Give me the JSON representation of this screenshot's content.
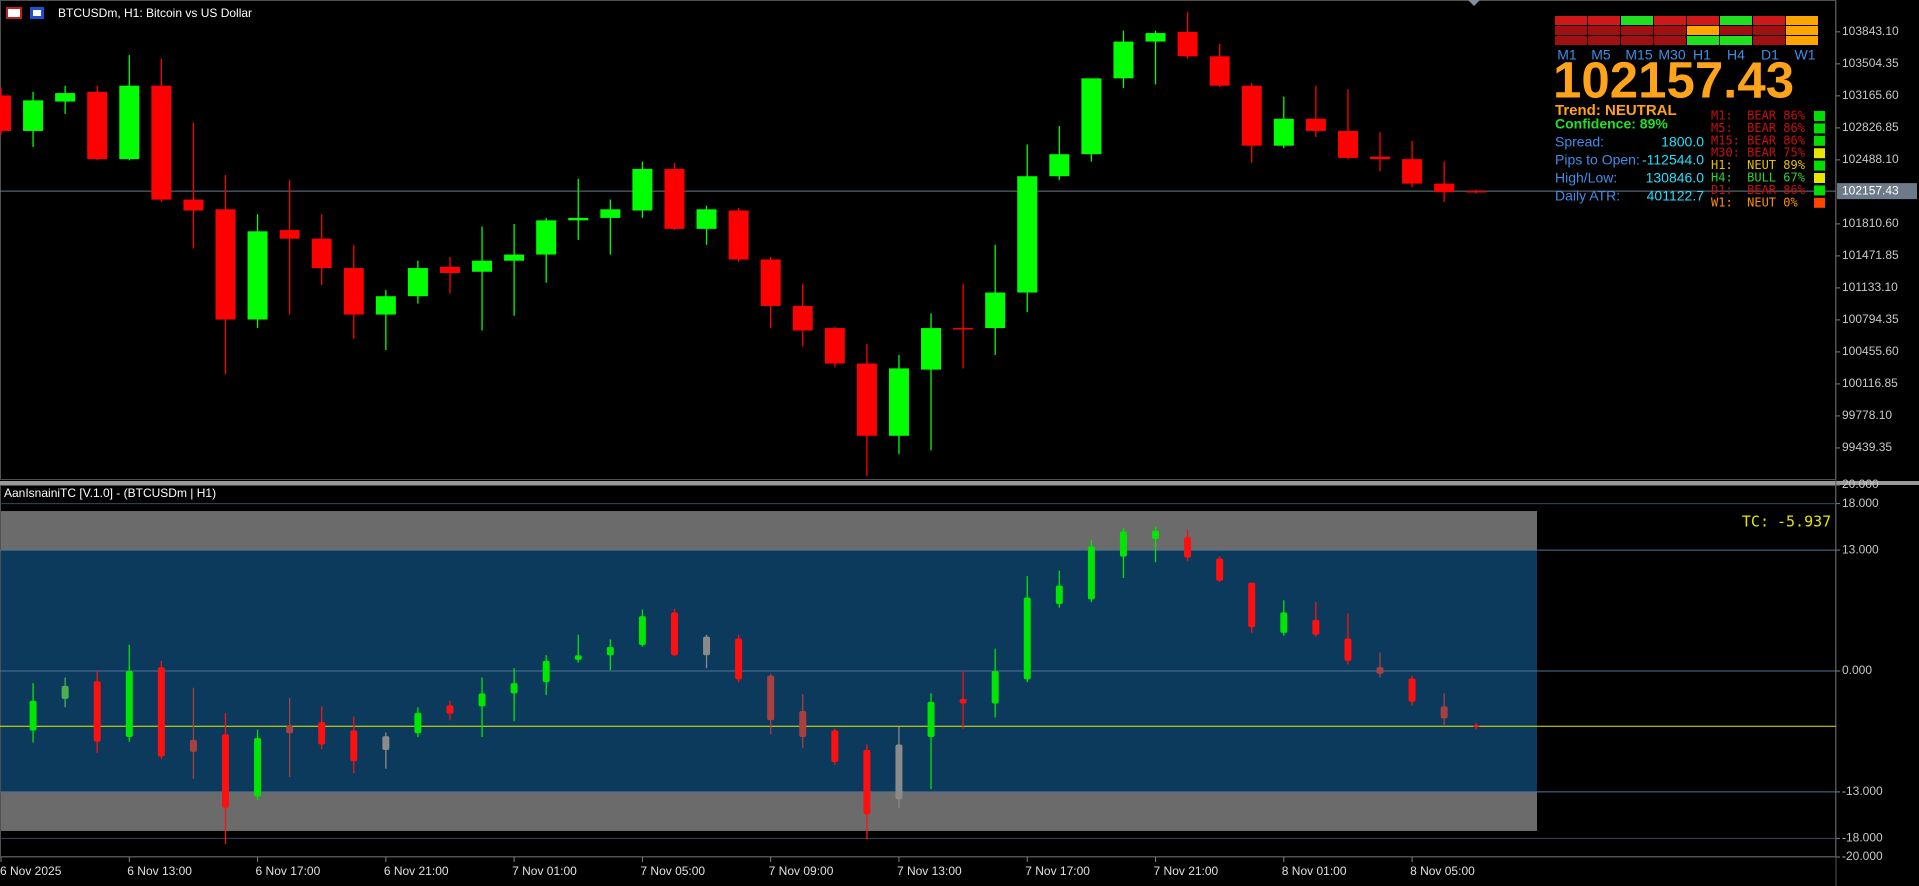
{
  "chart_data": [
    {
      "type": "candlestick",
      "title": "BTCUSDm, H1:  Bitcoin vs US Dollar",
      "categories": [
        "6 Nov 2025",
        null,
        null,
        null,
        "6 Nov 13:00",
        null,
        null,
        null,
        "6 Nov 17:00",
        null,
        null,
        null,
        "6 Nov 21:00",
        null,
        null,
        null,
        "7 Nov 01:00",
        null,
        null,
        null,
        "7 Nov 05:00",
        null,
        null,
        null,
        "7 Nov 09:00",
        null,
        null,
        null,
        "7 Nov 13:00",
        null,
        null,
        null,
        "7 Nov 17:00",
        null,
        null,
        null,
        "7 Nov 21:00",
        null,
        null,
        null,
        "8 Nov 01:00",
        null,
        null,
        null,
        "8 Nov 05:00",
        null,
        null
      ],
      "open": [
        103170,
        102794,
        103105,
        103208,
        102496,
        103273,
        102068,
        101965,
        100799,
        101745,
        101654,
        101343,
        100851,
        101045,
        101356,
        101304,
        101421,
        101486,
        101848,
        101874,
        101952,
        102392,
        101758,
        101952,
        101434,
        100942,
        100708,
        100333,
        99568,
        100268,
        100708,
        100708,
        101084,
        102315,
        102548,
        103351,
        103740,
        103843,
        103584,
        103273,
        102638,
        102923,
        102794,
        102522,
        102496,
        102237,
        102159
      ],
      "high": [
        103247,
        103208,
        103273,
        103273,
        103597,
        103558,
        102884,
        102328,
        101913,
        102276,
        101913,
        101589,
        101110,
        101421,
        101460,
        101783,
        101809,
        101874,
        102289,
        102068,
        102470,
        102457,
        102004,
        101978,
        101460,
        101175,
        100721,
        100540,
        100423,
        100864,
        101175,
        101589,
        102651,
        102846,
        103351,
        103856,
        103856,
        104050,
        103714,
        103299,
        103157,
        103273,
        103234,
        102781,
        102690,
        102470,
        102172
      ],
      "low": [
        102755,
        102625,
        102975,
        102483,
        102483,
        102043,
        101550,
        100216,
        100708,
        100851,
        101162,
        100592,
        100475,
        100967,
        101071,
        100682,
        100838,
        101188,
        101641,
        101486,
        101874,
        101745,
        101589,
        101408,
        100708,
        100514,
        100294,
        99141,
        99374,
        99413,
        100281,
        100423,
        100877,
        102276,
        102470,
        103247,
        103286,
        103558,
        103260,
        102457,
        102612,
        102729,
        102496,
        102366,
        102198,
        102043,
        102133
      ],
      "close": [
        102794,
        103118,
        103195,
        102496,
        103273,
        102068,
        101952,
        100799,
        101732,
        101654,
        101343,
        100851,
        101045,
        101343,
        101291,
        101421,
        101486,
        101848,
        101874,
        101965,
        102392,
        101758,
        101965,
        101434,
        100942,
        100682,
        100333,
        99568,
        100281,
        100708,
        100695,
        101084,
        102315,
        102548,
        103351,
        103740,
        103830,
        103584,
        103273,
        102638,
        102923,
        102794,
        102509,
        102496,
        102237,
        102146,
        102157.43
      ],
      "up_color": "#00ff00",
      "down_color": "#ff0000",
      "ylim": [
        99100,
        104180
      ],
      "yticks": [
        {
          "value": 103843.1,
          "label": "103843.10"
        },
        103504.35,
        {
          "value": 103165.6,
          "label": "103165.60"
        },
        102826.85,
        {
          "value": 102488.1,
          "label": "102488.10"
        },
        {
          "value": 101810.6,
          "label": "101810.60"
        },
        101471.85,
        {
          "value": 101133.1,
          "label": "101133.10"
        },
        100794.35,
        {
          "value": 100455.6,
          "label": "100455.60"
        },
        100116.85,
        {
          "value": 99778.1,
          "label": "99778.10"
        },
        99439.35
      ],
      "last_price": 102157.43
    },
    {
      "type": "candlestick",
      "title": "AanIsnainiTC [V.1.0]  - (BTCUSDm | H1)",
      "open": [
        null,
        -6.4,
        -3.0,
        -1.1,
        -7.1,
        0.4,
        -7.4,
        -6.8,
        -13.5,
        -5.9,
        -5.5,
        -6.4,
        -7.0,
        -6.7,
        -3.7,
        -3.8,
        -2.4,
        -1.2,
        1.2,
        1.7,
        2.8,
        6.3,
        3.7,
        3.5,
        -0.5,
        -4.3,
        -6.4,
        -8.5,
        -13.8,
        -7.1,
        -3.0,
        -3.5,
        -0.9,
        7.2,
        7.7,
        12.3,
        14.2,
        14.4,
        12.1,
        9.5,
        4.1,
        5.5,
        3.5,
        0.4,
        -0.8,
        -3.8,
        -5.8
      ],
      "high": [
        null,
        -1.3,
        -0.7,
        0,
        2.8,
        1.1,
        -1.8,
        -4.5,
        -6.3,
        -2.9,
        -3.8,
        -4.9,
        -6.6,
        -3.9,
        -3.2,
        -0.7,
        0.3,
        1.7,
        3.9,
        3.4,
        6.6,
        6.7,
        3.9,
        3.9,
        -0.3,
        -2.5,
        -6.2,
        -7.9,
        -6.0,
        -2.4,
        0,
        2.4,
        10.2,
        10.8,
        14.1,
        15.4,
        15.5,
        15.2,
        12.3,
        9.5,
        7.6,
        7.4,
        6.2,
        2.0,
        -0.5,
        -2.4,
        -5.6
      ],
      "low": [
        null,
        -7.7,
        -3.9,
        -8.8,
        -7.6,
        -9.5,
        -11.6,
        -18.6,
        -13.9,
        -11.4,
        -8.4,
        -11.0,
        -10.5,
        -7.1,
        -5.3,
        -7.1,
        -5.4,
        -2.6,
        0.9,
        0.1,
        2.6,
        1.6,
        0.3,
        -1.2,
        -6.8,
        -8.3,
        -10.1,
        -18.1,
        -14.7,
        -12.7,
        -6.2,
        -5.0,
        -1.2,
        6.8,
        7.4,
        10.0,
        11.7,
        11.8,
        9.6,
        4.1,
        3.8,
        3.7,
        0.7,
        -0.7,
        -3.7,
        -5.8,
        -6.3
      ],
      "close": [
        null,
        -3.2,
        -1.6,
        -7.6,
        0,
        -9.2,
        -8.7,
        -14.7,
        -7.2,
        -6.7,
        -7.9,
        -9.7,
        -8.5,
        -4.5,
        -4.6,
        -2.4,
        -1.3,
        1.1,
        1.7,
        2.6,
        5.9,
        1.7,
        1.7,
        -0.9,
        -5.3,
        -7.1,
        -9.8,
        -15.4,
        -7.9,
        -3.3,
        -3.5,
        0,
        7.9,
        9.2,
        13.4,
        15.0,
        15.1,
        12.2,
        9.7,
        4.7,
        6.3,
        3.9,
        1.1,
        -0.3,
        -3.3,
        -5.1,
        -5.937
      ],
      "colors": [
        null,
        "#00e600",
        "#4caf50",
        "#ff1010",
        "#00e600",
        "#ff1010",
        "#a84040",
        "#ff1010",
        "#00e600",
        "#a84040",
        "#ff1010",
        "#ff1010",
        "#8a8a8a",
        "#00e600",
        "#ff1010",
        "#00e600",
        "#00e600",
        "#00e600",
        "#00e600",
        "#00e600",
        "#00e600",
        "#ff1010",
        "#8a8a8a",
        "#ff1010",
        "#a84040",
        "#a84040",
        "#ff1010",
        "#ff1010",
        "#8a8a8a",
        "#00e600",
        "#ff1010",
        "#00e600",
        "#00e600",
        "#00e600",
        "#00e600",
        "#00e600",
        "#00e600",
        "#ff1010",
        "#ff1010",
        "#ff1010",
        "#00e600",
        "#ff1010",
        "#ff1010",
        "#a84040",
        "#ff1010",
        "#a84040",
        "#ff1010"
      ],
      "ylim": [
        -20,
        20
      ],
      "yticks": [
        {
          "value": 20,
          "label": "20.000"
        },
        {
          "value": 18,
          "label": "18.000"
        },
        {
          "value": 13,
          "label": "13.000"
        },
        {
          "value": 0,
          "label": "0.000"
        },
        {
          "value": -13,
          "label": "-13.000"
        },
        {
          "value": -18,
          "label": "-18.000"
        },
        {
          "value": -20,
          "label": "-20.000"
        }
      ],
      "zones": [
        {
          "from": 17.2,
          "to": 13,
          "color": "#6b6b6b"
        },
        {
          "from": 13,
          "to": -13,
          "color": "#0b3a5c"
        },
        {
          "from": -13,
          "to": -17.2,
          "color": "#6b6b6b"
        }
      ],
      "levels": [
        13,
        0,
        -13
      ],
      "bounds": [
        18,
        -18
      ],
      "tc_label": "TC:",
      "tc": -5.937,
      "tc_color": "#e6e600"
    }
  ],
  "dashboard": {
    "signal_grid": [
      [
        "#d01818",
        "#d01818",
        "#20e020",
        "#d01818",
        "#d01818",
        "#20e020",
        "#d01818",
        "#ffa500"
      ],
      [
        "#a01010",
        "#a01010",
        "#a01010",
        "#a01010",
        "#ffa500",
        "#a01010",
        "#a01010",
        "#ffa500"
      ],
      [
        "#a01010",
        "#a01010",
        "#a01010",
        "#a01010",
        "#20e020",
        "#20e020",
        "#a01010",
        "#ffa500"
      ]
    ],
    "timeframes": [
      "M1",
      "M5",
      "M15",
      "M30",
      "H1",
      "H4",
      "D1",
      "W1"
    ],
    "price": 102157.43,
    "trend": "Trend: NEUTRAL",
    "confidence": "Confidence: 89%",
    "stats": [
      {
        "label": "Spread:",
        "value": "1800.0"
      },
      {
        "label": "Pips to Open:",
        "value": "-112544.0"
      },
      {
        "label": "High/Low:",
        "value": "130846.0"
      },
      {
        "label": "Daily ATR:",
        "value": "401122.7"
      }
    ],
    "signals": [
      {
        "text": "M1:  BEAR 86%",
        "color": "#c81010",
        "box": "#00e000"
      },
      {
        "text": "M5:  BEAR 86%",
        "color": "#c81010",
        "box": "#00e000"
      },
      {
        "text": "M15: BEAR 86%",
        "color": "#c81010",
        "box": "#00e000"
      },
      {
        "text": "M30: BEAR 75%",
        "color": "#c81010",
        "box": "#e6e600"
      },
      {
        "text": "H1:  NEUT 89%",
        "color": "#e6c000",
        "box": "#00e000"
      },
      {
        "text": "H4:  BULL 67%",
        "color": "#30d030",
        "box": "#e6e600"
      },
      {
        "text": "D1:  BEAR 86%",
        "color": "#c81010",
        "box": "#00e000"
      },
      {
        "text": "W1:  NEUT 0%",
        "color": "#ff9000",
        "box": "#ff4500"
      }
    ]
  }
}
